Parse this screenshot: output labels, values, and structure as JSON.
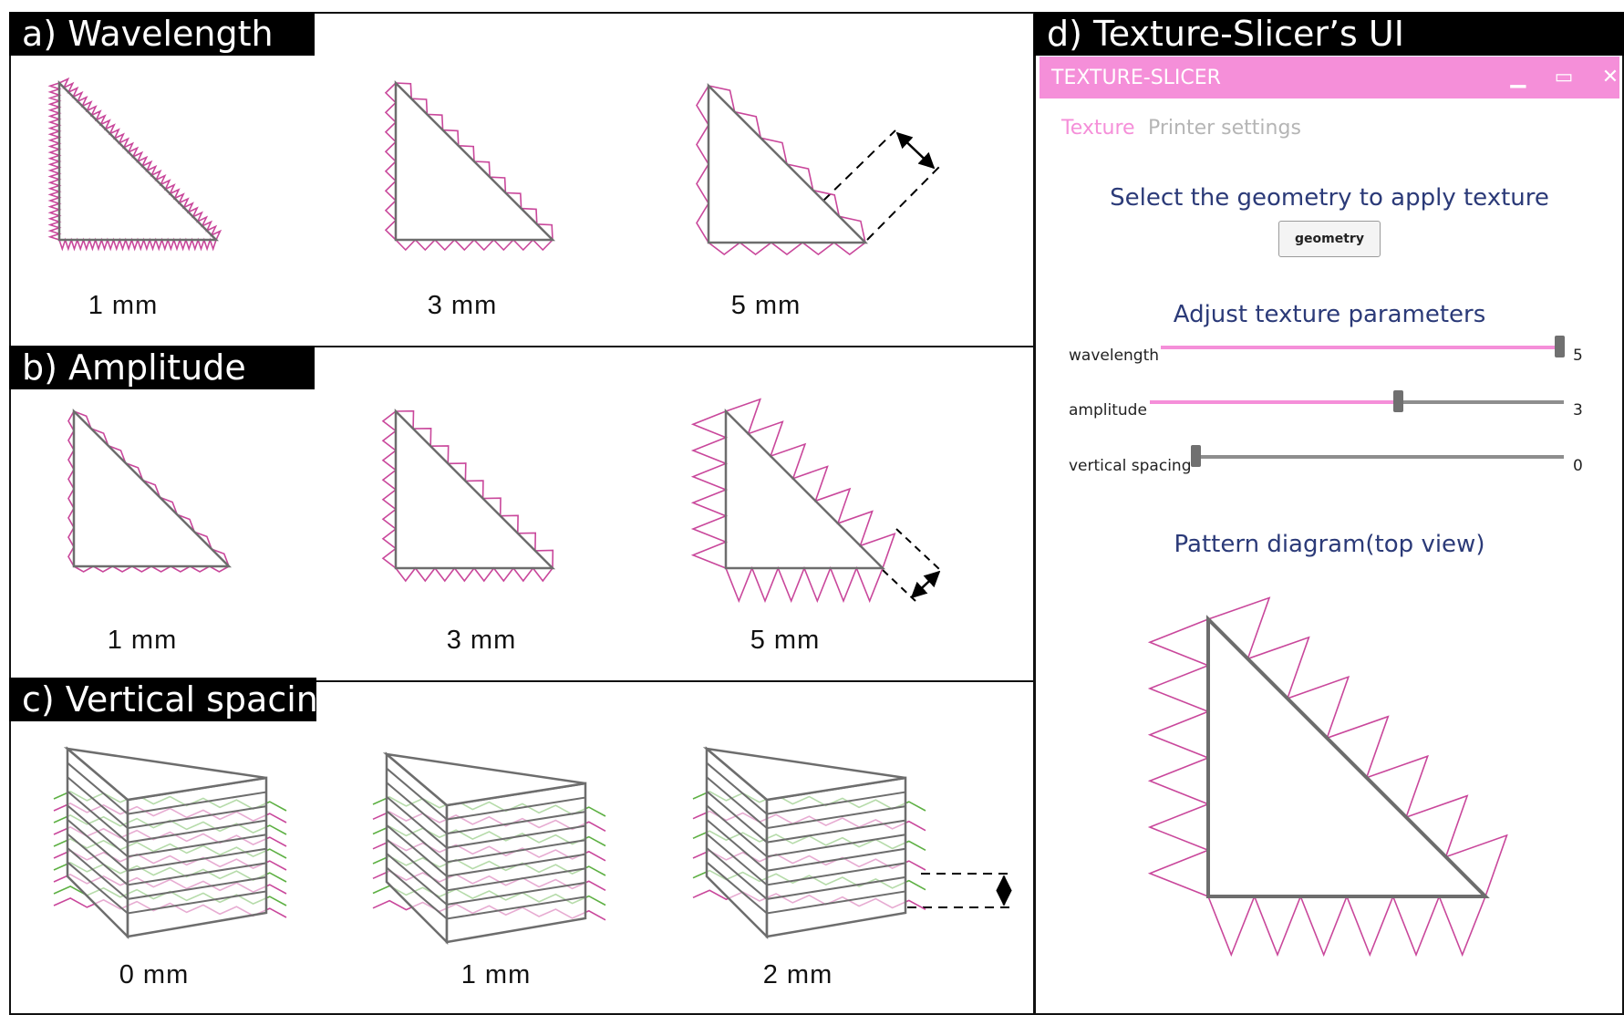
{
  "panels": {
    "a": {
      "title": "a) Wavelength",
      "captions": [
        "1 mm",
        "3 mm",
        "5 mm"
      ]
    },
    "b": {
      "title": "b) Amplitude",
      "captions": [
        "1 mm",
        "3 mm",
        "5 mm"
      ]
    },
    "c": {
      "title": "c) Vertical spacing",
      "captions": [
        "0 mm",
        "1 mm",
        "2 mm"
      ]
    },
    "d": {
      "title": "d) Texture-Slicer’s UI"
    }
  },
  "app": {
    "title": "TEXTURE-SLICER",
    "window_controls": {
      "minimize": "▁",
      "maximize": "▭",
      "close": "✕"
    },
    "tabs": [
      {
        "label": "Texture",
        "active": true
      },
      {
        "label": "Printer settings",
        "active": false
      }
    ],
    "select_heading": "Select the geometry to apply texture",
    "geometry_button": "geometry",
    "adjust_heading": "Adjust texture parameters",
    "sliders": [
      {
        "label": "wavelength",
        "value": "5",
        "fraction": 1.0
      },
      {
        "label": "amplitude",
        "value": "3",
        "fraction": 0.6
      },
      {
        "label": "vertical spacing",
        "value": "0",
        "fraction": 0.0
      }
    ],
    "pattern_heading": "Pattern diagram(top view)"
  },
  "colors": {
    "accent_pink": "#f58fd9",
    "texture_pink": "#c9479b",
    "texture_green": "#5db043",
    "outline_gray": "#6d6d6d",
    "heading_navy": "#2b3a78"
  }
}
